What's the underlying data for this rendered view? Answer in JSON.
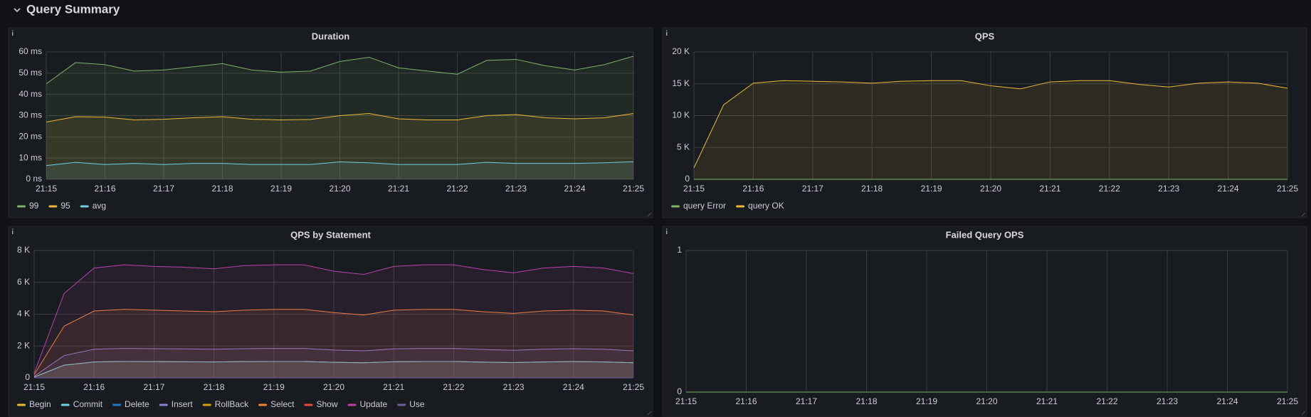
{
  "header": {
    "title": "Query Summary"
  },
  "chart_data": [
    {
      "type": "line",
      "title": "Duration",
      "x": [
        0,
        0.5,
        1,
        1.5,
        2,
        2.5,
        3,
        3.5,
        4,
        4.5,
        5,
        5.5,
        6,
        6.5,
        7,
        7.5,
        8,
        8.5,
        9,
        9.5,
        10
      ],
      "xlim": [
        0,
        10
      ],
      "xticks": [
        {
          "value": 0,
          "label": "21:15"
        },
        {
          "value": 1,
          "label": "21:16"
        },
        {
          "value": 2,
          "label": "21:17"
        },
        {
          "value": 3,
          "label": "21:18"
        },
        {
          "value": 4,
          "label": "21:19"
        },
        {
          "value": 5,
          "label": "21:20"
        },
        {
          "value": 6,
          "label": "21:21"
        },
        {
          "value": 7,
          "label": "21:22"
        },
        {
          "value": 8,
          "label": "21:23"
        },
        {
          "value": 9,
          "label": "21:24"
        },
        {
          "value": 10,
          "label": "21:25"
        }
      ],
      "ylim": [
        0,
        60
      ],
      "yticks": [
        {
          "value": 0,
          "label": "0 ns"
        },
        {
          "value": 10,
          "label": "10 ms"
        },
        {
          "value": 20,
          "label": "20 ms"
        },
        {
          "value": 30,
          "label": "30 ms"
        },
        {
          "value": 40,
          "label": "40 ms"
        },
        {
          "value": 50,
          "label": "50 ms"
        },
        {
          "value": 60,
          "label": "60 ms"
        }
      ],
      "grid": true,
      "series": [
        {
          "name": "99",
          "color": "#7eb26d",
          "values": [
            45,
            55,
            54,
            51,
            51.5,
            53,
            54.5,
            51.5,
            50.5,
            51,
            55.5,
            57.5,
            52.5,
            51,
            49.5,
            56,
            56.5,
            53.5,
            51.5,
            54,
            58
          ]
        },
        {
          "name": "95",
          "color": "#eab839",
          "values": [
            27,
            29.5,
            29.3,
            28,
            28.3,
            29,
            29.5,
            28.3,
            28,
            28.2,
            30,
            31,
            28.5,
            28,
            28,
            30,
            30.5,
            29,
            28.5,
            29,
            31
          ]
        },
        {
          "name": "avg",
          "color": "#6ed0e0",
          "values": [
            6.5,
            8,
            7,
            7.5,
            7,
            7.5,
            7.5,
            7,
            7,
            7,
            8.2,
            7.8,
            7,
            7,
            7,
            8,
            7.5,
            7.5,
            7.5,
            7.8,
            8.3
          ]
        }
      ]
    },
    {
      "type": "line",
      "title": "QPS",
      "x": [
        0,
        0.5,
        1,
        1.5,
        2,
        2.5,
        3,
        3.5,
        4,
        4.5,
        5,
        5.5,
        6,
        6.5,
        7,
        7.5,
        8,
        8.5,
        9,
        9.5,
        10
      ],
      "xlim": [
        0,
        10
      ],
      "xticks": [
        {
          "value": 0,
          "label": "21:15"
        },
        {
          "value": 1,
          "label": "21:16"
        },
        {
          "value": 2,
          "label": "21:17"
        },
        {
          "value": 3,
          "label": "21:18"
        },
        {
          "value": 4,
          "label": "21:19"
        },
        {
          "value": 5,
          "label": "21:20"
        },
        {
          "value": 6,
          "label": "21:21"
        },
        {
          "value": 7,
          "label": "21:22"
        },
        {
          "value": 8,
          "label": "21:23"
        },
        {
          "value": 9,
          "label": "21:24"
        },
        {
          "value": 10,
          "label": "21:25"
        }
      ],
      "ylim": [
        0,
        20000
      ],
      "yticks": [
        0,
        {
          "value": 5000,
          "label": "5 K"
        },
        {
          "value": 10000,
          "label": "10 K"
        },
        {
          "value": 15000,
          "label": "15 K"
        },
        {
          "value": 20000,
          "label": "20 K"
        }
      ],
      "grid": true,
      "series": [
        {
          "name": "query Error",
          "color": "#7eb26d",
          "values": [
            0,
            0,
            0,
            0,
            0,
            0,
            0,
            0,
            0,
            0,
            0,
            0,
            0,
            0,
            0,
            0,
            0,
            0,
            0,
            0,
            0
          ]
        },
        {
          "name": "query OK",
          "color": "#eab839",
          "values": [
            1800,
            11700,
            15100,
            15500,
            15400,
            15300,
            15100,
            15400,
            15500,
            15500,
            14700,
            14200,
            15300,
            15500,
            15500,
            14900,
            14500,
            15100,
            15300,
            15100,
            14300
          ]
        }
      ]
    },
    {
      "type": "line",
      "title": "QPS by Statement",
      "x": [
        0,
        0.5,
        1,
        1.5,
        2,
        2.5,
        3,
        3.5,
        4,
        4.5,
        5,
        5.5,
        6,
        6.5,
        7,
        7.5,
        8,
        8.5,
        9,
        9.5,
        10
      ],
      "xlim": [
        0,
        10
      ],
      "xticks": [
        {
          "value": 0,
          "label": "21:15"
        },
        {
          "value": 1,
          "label": "21:16"
        },
        {
          "value": 2,
          "label": "21:17"
        },
        {
          "value": 3,
          "label": "21:18"
        },
        {
          "value": 4,
          "label": "21:19"
        },
        {
          "value": 5,
          "label": "21:20"
        },
        {
          "value": 6,
          "label": "21:21"
        },
        {
          "value": 7,
          "label": "21:22"
        },
        {
          "value": 8,
          "label": "21:23"
        },
        {
          "value": 9,
          "label": "21:24"
        },
        {
          "value": 10,
          "label": "21:25"
        }
      ],
      "ylim": [
        0,
        8000
      ],
      "yticks": [
        0,
        {
          "value": 2000,
          "label": "2 K"
        },
        {
          "value": 4000,
          "label": "4 K"
        },
        {
          "value": 6000,
          "label": "6 K"
        },
        {
          "value": 8000,
          "label": "8 K"
        }
      ],
      "grid": true,
      "series": [
        {
          "name": "Begin",
          "color": "#eab839",
          "values": [
            50,
            800,
            1000,
            1030,
            1020,
            1010,
            1000,
            1020,
            1030,
            1030,
            980,
            950,
            1010,
            1030,
            1030,
            990,
            960,
            1000,
            1020,
            1000,
            950
          ]
        },
        {
          "name": "Commit",
          "color": "#6ed0e0",
          "values": [
            50,
            800,
            1000,
            1030,
            1020,
            1010,
            1000,
            1020,
            1030,
            1030,
            980,
            950,
            1010,
            1030,
            1030,
            990,
            960,
            1000,
            1020,
            1000,
            950
          ]
        },
        {
          "name": "Delete",
          "color": "#1f78c1",
          "values": [
            0,
            0,
            0,
            0,
            0,
            0,
            0,
            0,
            0,
            0,
            0,
            0,
            0,
            0,
            0,
            0,
            0,
            0,
            0,
            0,
            0
          ]
        },
        {
          "name": "Insert",
          "color": "#8f7fd0",
          "values": [
            100,
            1400,
            1800,
            1850,
            1830,
            1820,
            1800,
            1830,
            1850,
            1850,
            1750,
            1700,
            1820,
            1850,
            1850,
            1780,
            1730,
            1800,
            1830,
            1800,
            1700
          ]
        },
        {
          "name": "RollBack",
          "color": "#cca300",
          "values": [
            0,
            0,
            0,
            0,
            0,
            0,
            0,
            0,
            0,
            0,
            0,
            0,
            0,
            0,
            0,
            0,
            0,
            0,
            0,
            0,
            0
          ]
        },
        {
          "name": "Select",
          "color": "#ef843c",
          "values": [
            200,
            3250,
            4200,
            4300,
            4250,
            4200,
            4150,
            4250,
            4300,
            4300,
            4100,
            3950,
            4250,
            4300,
            4300,
            4150,
            4050,
            4200,
            4250,
            4200,
            3950
          ]
        },
        {
          "name": "Show",
          "color": "#e24d42",
          "values": [
            0,
            0,
            0,
            0,
            0,
            0,
            0,
            0,
            0,
            0,
            0,
            0,
            0,
            0,
            0,
            0,
            0,
            0,
            0,
            0,
            0
          ]
        },
        {
          "name": "Update",
          "color": "#ba43a9",
          "values": [
            300,
            5300,
            6900,
            7100,
            7000,
            6950,
            6850,
            7050,
            7100,
            7100,
            6700,
            6500,
            7000,
            7100,
            7100,
            6800,
            6600,
            6900,
            7000,
            6900,
            6550
          ]
        },
        {
          "name": "Use",
          "color": "#705da0",
          "values": [
            0,
            0,
            0,
            0,
            0,
            0,
            0,
            0,
            0,
            0,
            0,
            0,
            0,
            0,
            0,
            0,
            0,
            0,
            0,
            0,
            0
          ]
        }
      ]
    },
    {
      "type": "line",
      "title": "Failed Query OPS",
      "x": [
        0,
        0.5,
        1,
        1.5,
        2,
        2.5,
        3,
        3.5,
        4,
        4.5,
        5,
        5.5,
        6,
        6.5,
        7,
        7.5,
        8,
        8.5,
        9,
        9.5,
        10
      ],
      "xlim": [
        0,
        10
      ],
      "xticks": [
        {
          "value": 0,
          "label": "21:15"
        },
        {
          "value": 1,
          "label": "21:16"
        },
        {
          "value": 2,
          "label": "21:17"
        },
        {
          "value": 3,
          "label": "21:18"
        },
        {
          "value": 4,
          "label": "21:19"
        },
        {
          "value": 5,
          "label": "21:20"
        },
        {
          "value": 6,
          "label": "21:21"
        },
        {
          "value": 7,
          "label": "21:22"
        },
        {
          "value": 8,
          "label": "21:23"
        },
        {
          "value": 9,
          "label": "21:24"
        },
        {
          "value": 10,
          "label": "21:25"
        }
      ],
      "ylim": [
        0,
        1
      ],
      "yticks": [
        0,
        1
      ],
      "grid": true,
      "series": [
        {
          "color": "#7eb26d",
          "values": [
            0,
            0,
            0,
            0,
            0,
            0,
            0,
            0,
            0,
            0,
            0,
            0,
            0,
            0,
            0,
            0,
            0,
            0,
            0,
            0,
            0
          ]
        }
      ]
    }
  ]
}
